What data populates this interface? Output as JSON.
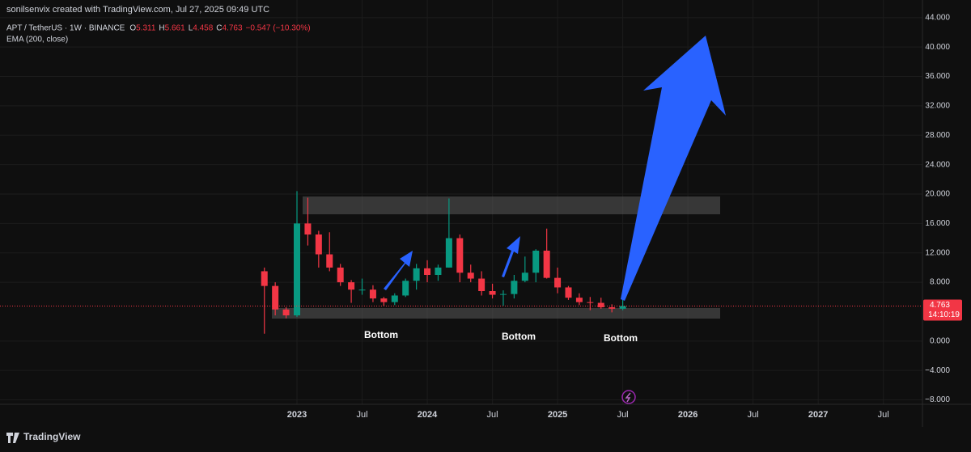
{
  "chart_data": {
    "type": "candlestick",
    "credit": "sonilsenvix created with TradingView.com, Jul 27, 2025 09:49 UTC",
    "symbol": "APT / TetherUS · 1W · BINANCE",
    "ohlc": [
      {
        "label": "O",
        "value": 5.311
      },
      {
        "label": "H",
        "value": 5.661
      },
      {
        "label": "L",
        "value": 4.458
      },
      {
        "label": "C",
        "value": 4.763
      }
    ],
    "change": "−0.547 (−10.30%)",
    "indicator": "EMA (200, close)",
    "x": [
      "2022-10",
      "2022-11",
      "2022-12",
      "2023-01",
      "2023-02",
      "2023-03",
      "2023-04",
      "2023-05",
      "2023-06",
      "2023-07",
      "2023-08",
      "2023-09",
      "2023-10",
      "2023-11",
      "2023-12",
      "2024-01",
      "2024-02",
      "2024-03",
      "2024-04",
      "2024-05",
      "2024-06",
      "2024-07",
      "2024-08",
      "2024-09",
      "2024-10",
      "2024-11",
      "2024-12",
      "2025-01",
      "2025-02",
      "2025-03",
      "2025-04",
      "2025-05",
      "2025-06",
      "2025-07"
    ],
    "open": [
      9.5,
      7.5,
      4.3,
      3.5,
      16,
      14.5,
      11.8,
      10,
      8,
      7,
      7,
      5.8,
      5.3,
      6.2,
      8.2,
      9.9,
      9,
      10,
      14,
      9.3,
      8.5,
      6.8,
      6.3,
      6.4,
      8.2,
      9.3,
      12.3,
      8.6,
      7.3,
      5.9,
      5.3,
      5.2,
      4.6,
      4.4
    ],
    "high": [
      10,
      8,
      4.6,
      20.4,
      19.5,
      15,
      14.8,
      10.5,
      8.3,
      8.5,
      7.6,
      6,
      6.5,
      8.5,
      10.5,
      11,
      10.4,
      19.4,
      14.5,
      10.4,
      9.5,
      7.8,
      6.9,
      9,
      11.5,
      12.5,
      15.3,
      10,
      7.5,
      6.5,
      6,
      5.9,
      5,
      5.7
    ],
    "low": [
      1,
      3.5,
      3.1,
      3.3,
      13,
      10,
      9.5,
      7.5,
      5.2,
      6.3,
      5.3,
      4.8,
      4.9,
      6,
      7,
      8,
      8.2,
      10,
      8,
      8,
      6.2,
      5.8,
      4.8,
      5.8,
      8,
      8,
      8.5,
      6.5,
      5.6,
      4.9,
      4.2,
      4.4,
      3.9,
      4.2
    ],
    "close": [
      7.5,
      4.3,
      3.5,
      16,
      14.5,
      11.8,
      10,
      8,
      7,
      7,
      5.8,
      5.3,
      6.2,
      8.2,
      9.9,
      9,
      10,
      14,
      9.3,
      8.5,
      6.8,
      6.3,
      6.4,
      8.2,
      9.3,
      12.3,
      8.6,
      7.3,
      5.9,
      5.3,
      5.2,
      4.6,
      4.4,
      4.763
    ],
    "up_color": "#089981",
    "down_color": "#f23645",
    "last_price": {
      "value": 4.763,
      "label": "4.763",
      "countdown": "14:10:19"
    },
    "ylim": [
      -8.6,
      46.4
    ],
    "yticks": [
      {
        "value": 44,
        "label": "44.000"
      },
      {
        "value": 40,
        "label": "40.000"
      },
      {
        "value": 36,
        "label": "36.000"
      },
      {
        "value": 32,
        "label": "32.000"
      },
      {
        "value": 28,
        "label": "28.000"
      },
      {
        "value": 24,
        "label": "24.000"
      },
      {
        "value": 20,
        "label": "20.000"
      },
      {
        "value": 16,
        "label": "16.000"
      },
      {
        "value": 12,
        "label": "12.000"
      },
      {
        "value": 8,
        "label": "8.000"
      },
      {
        "value": 0,
        "label": "0.000"
      },
      {
        "value": -4,
        "label": "−4.000"
      },
      {
        "value": -8,
        "label": "−8.000"
      }
    ],
    "xticks": [
      {
        "value": "2023-01",
        "label": "2023"
      },
      {
        "value": "2023-07",
        "label": "Jul"
      },
      {
        "value": "2024-01",
        "label": "2024"
      },
      {
        "value": "2024-07",
        "label": "Jul"
      },
      {
        "value": "2025-01",
        "label": "2025"
      },
      {
        "value": "2025-07",
        "label": "Jul"
      },
      {
        "value": "2026-01",
        "label": "2026"
      },
      {
        "value": "2026-07",
        "label": "Jul"
      },
      {
        "value": "2027-01",
        "label": "2027"
      },
      {
        "value": "2027-07",
        "label": "Jul"
      }
    ],
    "grid": true,
    "annotations": [
      "Bottom",
      "Bottom",
      "Bottom"
    ],
    "footer": "TradingView"
  }
}
